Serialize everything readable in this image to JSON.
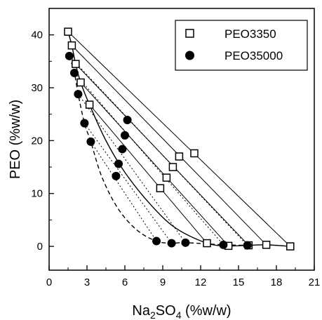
{
  "chart_data": {
    "type": "scatter",
    "xlabel": {
      "main": "Na",
      "sub1": "2",
      "mid": "SO",
      "sub2": "4",
      "unit": " (%w/w)"
    },
    "ylabel": "PEO (%w/w)",
    "xlim": [
      0,
      21
    ],
    "ylim": [
      -4.5,
      45
    ],
    "xticks": [
      0,
      3,
      6,
      9,
      12,
      15,
      18,
      21
    ],
    "yticks": [
      0,
      10,
      20,
      30,
      40
    ],
    "legend_position": "top-right",
    "series": [
      {
        "name": "PEO3350",
        "marker": "open-square",
        "points": [
          [
            1.5,
            40.6
          ],
          [
            1.8,
            38.0
          ],
          [
            2.1,
            34.5
          ],
          [
            2.5,
            31.0
          ],
          [
            3.2,
            26.8
          ],
          [
            8.8,
            11.0
          ],
          [
            9.3,
            13.0
          ],
          [
            9.8,
            15.0
          ],
          [
            10.3,
            17.0
          ],
          [
            11.5,
            17.6
          ],
          [
            12.5,
            0.6
          ],
          [
            14.2,
            0.1
          ],
          [
            15.8,
            0.2
          ],
          [
            17.2,
            0.3
          ],
          [
            19.1,
            0.0
          ]
        ],
        "binodal": [
          [
            1.5,
            40.6
          ],
          [
            1.8,
            38.0
          ],
          [
            2.1,
            34.5
          ],
          [
            2.5,
            31.0
          ],
          [
            3.2,
            26.8
          ],
          [
            4.5,
            20.0
          ],
          [
            6.0,
            14.0
          ],
          [
            8.0,
            8.0
          ],
          [
            10.0,
            3.5
          ],
          [
            12.5,
            0.6
          ],
          [
            14.2,
            0.1
          ],
          [
            15.8,
            0.2
          ],
          [
            17.2,
            0.3
          ],
          [
            19.1,
            0.0
          ]
        ],
        "tie_lines": [
          [
            [
              1.5,
              40.6
            ],
            [
              19.1,
              0.0
            ]
          ],
          [
            [
              1.8,
              38.0
            ],
            [
              17.2,
              0.3
            ]
          ],
          [
            [
              2.1,
              34.5
            ],
            [
              15.8,
              0.2
            ]
          ],
          [
            [
              2.5,
              31.0
            ],
            [
              14.2,
              0.1
            ]
          ],
          [
            [
              3.2,
              26.8
            ],
            [
              12.5,
              0.6
            ]
          ]
        ]
      },
      {
        "name": "PEO35000",
        "marker": "filled-circle",
        "points": [
          [
            1.6,
            36.0
          ],
          [
            2.0,
            32.8
          ],
          [
            2.3,
            28.8
          ],
          [
            2.8,
            23.3
          ],
          [
            3.3,
            19.8
          ],
          [
            5.3,
            13.3
          ],
          [
            5.5,
            15.6
          ],
          [
            5.8,
            18.4
          ],
          [
            6.0,
            21.0
          ],
          [
            6.2,
            23.9
          ],
          [
            8.5,
            1.0
          ],
          [
            9.7,
            0.6
          ],
          [
            10.8,
            0.7
          ],
          [
            13.8,
            0.3
          ],
          [
            15.7,
            0.2
          ]
        ],
        "binodal": [
          [
            1.6,
            36.0
          ],
          [
            2.0,
            32.8
          ],
          [
            2.3,
            28.8
          ],
          [
            2.8,
            23.3
          ],
          [
            3.3,
            19.8
          ],
          [
            4.2,
            13.0
          ],
          [
            5.5,
            7.0
          ],
          [
            7.0,
            3.0
          ],
          [
            8.5,
            1.0
          ],
          [
            9.7,
            0.6
          ],
          [
            10.8,
            0.7
          ],
          [
            13.8,
            0.3
          ],
          [
            15.7,
            0.2
          ]
        ],
        "tie_lines": [
          [
            [
              1.6,
              36.0
            ],
            [
              15.7,
              0.2
            ]
          ],
          [
            [
              2.0,
              32.8
            ],
            [
              13.8,
              0.3
            ]
          ],
          [
            [
              2.3,
              28.8
            ],
            [
              10.8,
              0.7
            ]
          ],
          [
            [
              2.8,
              23.3
            ],
            [
              9.7,
              0.6
            ]
          ],
          [
            [
              3.3,
              19.8
            ],
            [
              8.5,
              1.0
            ]
          ]
        ]
      }
    ]
  }
}
